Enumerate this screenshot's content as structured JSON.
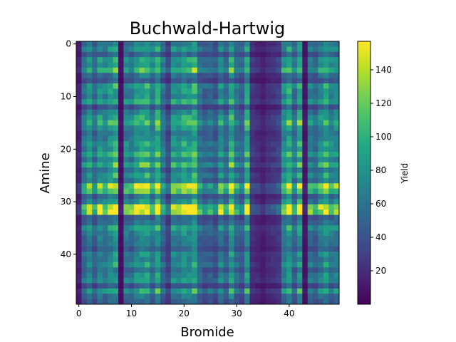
{
  "chart_data": {
    "type": "heatmap",
    "title": "Buchwald-Hartwig",
    "xlabel": "Bromide",
    "ylabel": "Amine",
    "rows": 50,
    "cols": 50,
    "x_ticks": [
      0,
      10,
      20,
      30,
      40
    ],
    "y_ticks": [
      0,
      10,
      20,
      30,
      40
    ],
    "colormap": "viridis",
    "colorbar": {
      "label": "Yield",
      "range": [
        0,
        157
      ],
      "ticks": [
        20,
        40,
        60,
        80,
        100,
        120,
        140
      ]
    },
    "row_factors": [
      0.45,
      0.55,
      0.35,
      0.6,
      0.5,
      0.7,
      0.4,
      0.3,
      0.6,
      0.55,
      0.5,
      0.65,
      0.3,
      0.5,
      0.6,
      0.7,
      0.55,
      0.45,
      0.5,
      0.6,
      0.55,
      0.65,
      0.5,
      0.7,
      0.45,
      0.6,
      0.5,
      0.95,
      0.8,
      0.4,
      0.55,
      1.0,
      1.0,
      0.35,
      0.4,
      0.6,
      0.5,
      0.45,
      0.4,
      0.35,
      0.5,
      0.45,
      0.55,
      0.4,
      0.5,
      0.55,
      0.3,
      0.6,
      0.4,
      0.35
    ],
    "col_factors": [
      0.15,
      0.6,
      0.75,
      0.55,
      0.8,
      0.7,
      0.85,
      0.95,
      0.08,
      0.7,
      0.65,
      0.85,
      0.9,
      0.95,
      0.7,
      1.0,
      0.6,
      0.35,
      0.8,
      0.7,
      0.9,
      0.85,
      1.0,
      0.6,
      0.5,
      0.55,
      0.45,
      0.75,
      0.55,
      0.95,
      0.6,
      0.5,
      0.95,
      0.25,
      0.2,
      0.15,
      0.2,
      0.25,
      0.3,
      0.75,
      0.95,
      0.6,
      0.95,
      0.1,
      0.65,
      0.55,
      0.75,
      0.9,
      0.7,
      0.75
    ],
    "value_scale": 157
  }
}
